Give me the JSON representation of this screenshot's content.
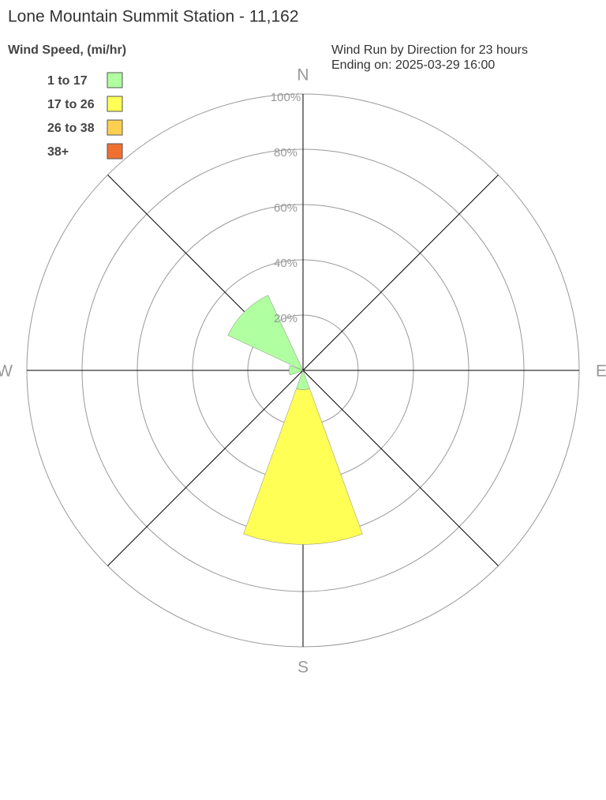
{
  "chart_data": {
    "type": "windrose",
    "title": "Lone Mountain Summit Station - 11,162",
    "subtitle": [
      "Wind Run by Direction for 23 hours",
      "Ending on: 2025-03-29 16:00"
    ],
    "legend_title": "Wind Speed, (mi/hr)",
    "categories": [
      "N",
      null,
      "E",
      null,
      "S",
      null,
      "W",
      null
    ],
    "series": [
      {
        "name": "1 to 17",
        "color": "#b0ffa0",
        "values": [
          0,
          0,
          0,
          0,
          7,
          0,
          5,
          30
        ]
      },
      {
        "name": "17 to 26",
        "color": "#ffff55",
        "values": [
          0,
          0,
          0,
          0,
          56,
          0,
          0,
          0
        ]
      },
      {
        "name": "26 to 38",
        "color": "#ffd050",
        "values": [
          0,
          0,
          0,
          0,
          0,
          0,
          0,
          0
        ]
      },
      {
        "name": "38+",
        "color": "#f07030",
        "values": [
          0,
          0,
          0,
          0,
          0,
          0,
          0,
          0
        ]
      }
    ],
    "rlim": [
      0,
      100
    ],
    "rticks": [
      {
        "value": 20,
        "label": "20%"
      },
      {
        "value": 40,
        "label": "40%"
      },
      {
        "value": 60,
        "label": "60%"
      },
      {
        "value": 80,
        "label": "80%"
      },
      {
        "value": 100,
        "label": "100%"
      }
    ]
  }
}
